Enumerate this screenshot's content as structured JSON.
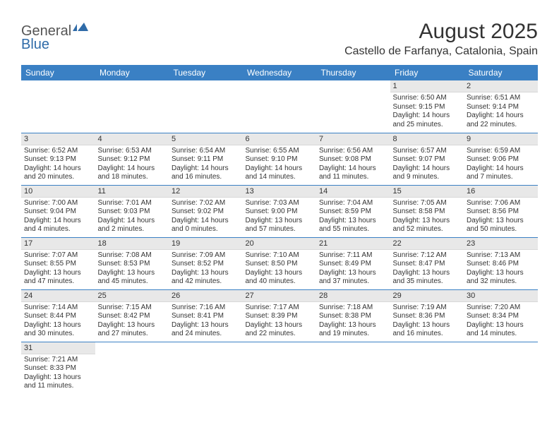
{
  "brand": {
    "part1": "General",
    "part2": "Blue"
  },
  "title": "August 2025",
  "location": "Castello de Farfanya, Catalonia, Spain",
  "colors": {
    "header_bg": "#3a80c4",
    "header_fg": "#ffffff",
    "daynum_bg": "#e8e8e8",
    "rule": "#3a80c4",
    "brand_gray": "#555555",
    "brand_blue": "#2f6ba8"
  },
  "dayHeaders": [
    "Sunday",
    "Monday",
    "Tuesday",
    "Wednesday",
    "Thursday",
    "Friday",
    "Saturday"
  ],
  "weeks": [
    [
      null,
      null,
      null,
      null,
      null,
      {
        "n": "1",
        "sunrise": "6:50 AM",
        "sunset": "9:15 PM",
        "daylight": "14 hours and 25 minutes."
      },
      {
        "n": "2",
        "sunrise": "6:51 AM",
        "sunset": "9:14 PM",
        "daylight": "14 hours and 22 minutes."
      }
    ],
    [
      {
        "n": "3",
        "sunrise": "6:52 AM",
        "sunset": "9:13 PM",
        "daylight": "14 hours and 20 minutes."
      },
      {
        "n": "4",
        "sunrise": "6:53 AM",
        "sunset": "9:12 PM",
        "daylight": "14 hours and 18 minutes."
      },
      {
        "n": "5",
        "sunrise": "6:54 AM",
        "sunset": "9:11 PM",
        "daylight": "14 hours and 16 minutes."
      },
      {
        "n": "6",
        "sunrise": "6:55 AM",
        "sunset": "9:10 PM",
        "daylight": "14 hours and 14 minutes."
      },
      {
        "n": "7",
        "sunrise": "6:56 AM",
        "sunset": "9:08 PM",
        "daylight": "14 hours and 11 minutes."
      },
      {
        "n": "8",
        "sunrise": "6:57 AM",
        "sunset": "9:07 PM",
        "daylight": "14 hours and 9 minutes."
      },
      {
        "n": "9",
        "sunrise": "6:59 AM",
        "sunset": "9:06 PM",
        "daylight": "14 hours and 7 minutes."
      }
    ],
    [
      {
        "n": "10",
        "sunrise": "7:00 AM",
        "sunset": "9:04 PM",
        "daylight": "14 hours and 4 minutes."
      },
      {
        "n": "11",
        "sunrise": "7:01 AM",
        "sunset": "9:03 PM",
        "daylight": "14 hours and 2 minutes."
      },
      {
        "n": "12",
        "sunrise": "7:02 AM",
        "sunset": "9:02 PM",
        "daylight": "14 hours and 0 minutes."
      },
      {
        "n": "13",
        "sunrise": "7:03 AM",
        "sunset": "9:00 PM",
        "daylight": "13 hours and 57 minutes."
      },
      {
        "n": "14",
        "sunrise": "7:04 AM",
        "sunset": "8:59 PM",
        "daylight": "13 hours and 55 minutes."
      },
      {
        "n": "15",
        "sunrise": "7:05 AM",
        "sunset": "8:58 PM",
        "daylight": "13 hours and 52 minutes."
      },
      {
        "n": "16",
        "sunrise": "7:06 AM",
        "sunset": "8:56 PM",
        "daylight": "13 hours and 50 minutes."
      }
    ],
    [
      {
        "n": "17",
        "sunrise": "7:07 AM",
        "sunset": "8:55 PM",
        "daylight": "13 hours and 47 minutes."
      },
      {
        "n": "18",
        "sunrise": "7:08 AM",
        "sunset": "8:53 PM",
        "daylight": "13 hours and 45 minutes."
      },
      {
        "n": "19",
        "sunrise": "7:09 AM",
        "sunset": "8:52 PM",
        "daylight": "13 hours and 42 minutes."
      },
      {
        "n": "20",
        "sunrise": "7:10 AM",
        "sunset": "8:50 PM",
        "daylight": "13 hours and 40 minutes."
      },
      {
        "n": "21",
        "sunrise": "7:11 AM",
        "sunset": "8:49 PM",
        "daylight": "13 hours and 37 minutes."
      },
      {
        "n": "22",
        "sunrise": "7:12 AM",
        "sunset": "8:47 PM",
        "daylight": "13 hours and 35 minutes."
      },
      {
        "n": "23",
        "sunrise": "7:13 AM",
        "sunset": "8:46 PM",
        "daylight": "13 hours and 32 minutes."
      }
    ],
    [
      {
        "n": "24",
        "sunrise": "7:14 AM",
        "sunset": "8:44 PM",
        "daylight": "13 hours and 30 minutes."
      },
      {
        "n": "25",
        "sunrise": "7:15 AM",
        "sunset": "8:42 PM",
        "daylight": "13 hours and 27 minutes."
      },
      {
        "n": "26",
        "sunrise": "7:16 AM",
        "sunset": "8:41 PM",
        "daylight": "13 hours and 24 minutes."
      },
      {
        "n": "27",
        "sunrise": "7:17 AM",
        "sunset": "8:39 PM",
        "daylight": "13 hours and 22 minutes."
      },
      {
        "n": "28",
        "sunrise": "7:18 AM",
        "sunset": "8:38 PM",
        "daylight": "13 hours and 19 minutes."
      },
      {
        "n": "29",
        "sunrise": "7:19 AM",
        "sunset": "8:36 PM",
        "daylight": "13 hours and 16 minutes."
      },
      {
        "n": "30",
        "sunrise": "7:20 AM",
        "sunset": "8:34 PM",
        "daylight": "13 hours and 14 minutes."
      }
    ],
    [
      {
        "n": "31",
        "sunrise": "7:21 AM",
        "sunset": "8:33 PM",
        "daylight": "13 hours and 11 minutes."
      },
      null,
      null,
      null,
      null,
      null,
      null
    ]
  ],
  "labels": {
    "sunrise": "Sunrise: ",
    "sunset": "Sunset: ",
    "daylight": "Daylight: "
  }
}
